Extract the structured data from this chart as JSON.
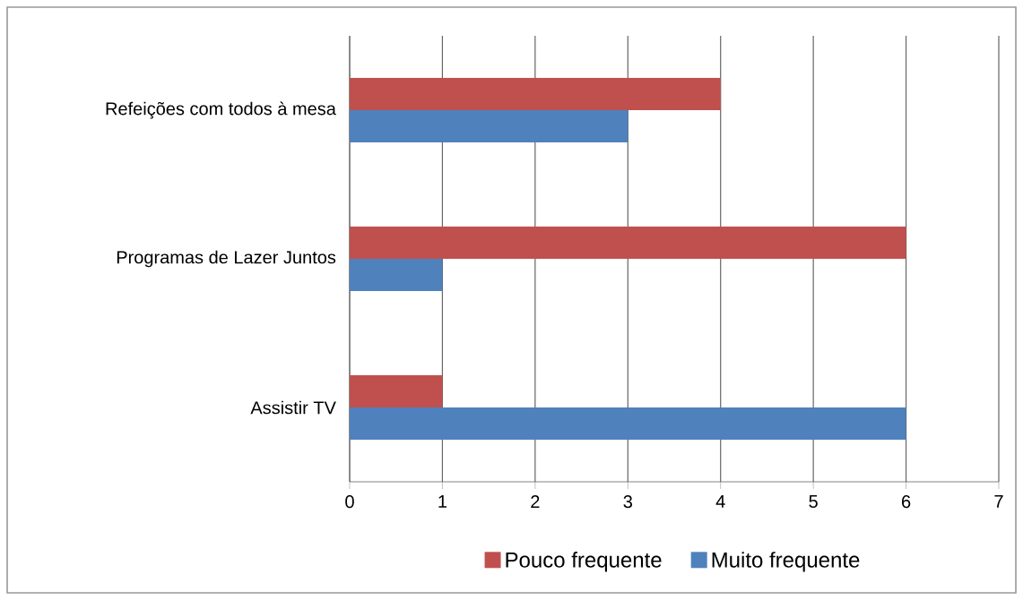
{
  "chart_data": {
    "type": "bar",
    "orientation": "horizontal",
    "categories": [
      "Refeições com todos à mesa",
      "Programas de Lazer Juntos",
      "Assistir TV"
    ],
    "series": [
      {
        "name": "Pouco frequente",
        "color": "#c0504d",
        "values": [
          4,
          6,
          1
        ]
      },
      {
        "name": "Muito frequente",
        "color": "#4f81bd",
        "values": [
          3,
          1,
          6
        ]
      }
    ],
    "xlim": [
      0,
      7
    ],
    "xticks": [
      0,
      1,
      2,
      3,
      4,
      5,
      6,
      7
    ],
    "grid": "x",
    "legend": "bottom"
  }
}
